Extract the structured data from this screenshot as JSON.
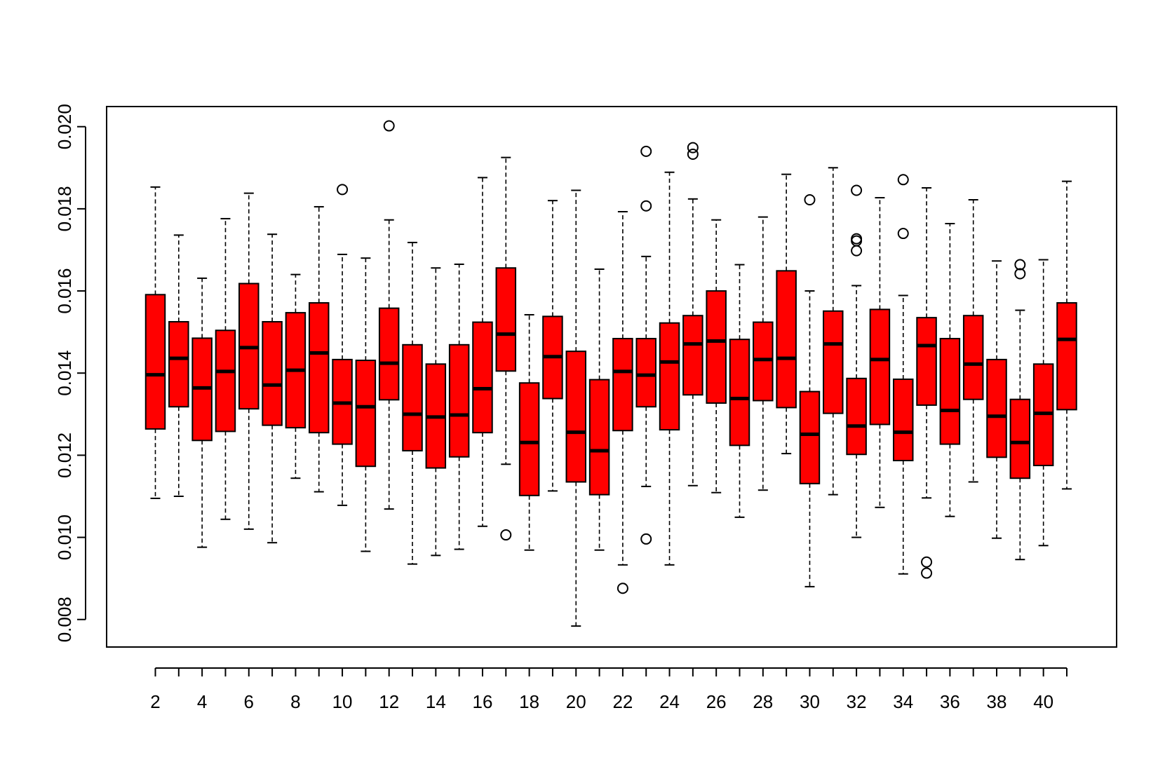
{
  "chart_data": {
    "type": "boxplot",
    "color": "#ff0000",
    "categories": [
      "2",
      null,
      "4",
      null,
      "6",
      null,
      "8",
      null,
      "10",
      null,
      "12",
      null,
      "14",
      null,
      "16",
      null,
      "18",
      null,
      "20",
      null,
      "22",
      null,
      "24",
      null,
      "26",
      null,
      "28",
      null,
      "30",
      null,
      "32",
      null,
      "34",
      null,
      "36",
      null,
      "38",
      null,
      "40",
      null
    ],
    "ylim": [
      0.00733,
      0.02049
    ],
    "yticks": [
      0.008,
      {
        "value": 0.01,
        "label": "0.010"
      },
      0.012,
      0.014,
      0.016,
      0.018,
      {
        "value": 0.02,
        "label": "0.020"
      }
    ],
    "boxes": [
      {
        "whislo": 0.01095,
        "q1": 0.01264,
        "med": 0.01396,
        "q3": 0.01591,
        "whishi": 0.01853,
        "fliers": []
      },
      {
        "whislo": 0.011,
        "q1": 0.01318,
        "med": 0.01436,
        "q3": 0.01525,
        "whishi": 0.01736,
        "fliers": []
      },
      {
        "whislo": 0.00976,
        "q1": 0.01236,
        "med": 0.01364,
        "q3": 0.01485,
        "whishi": 0.01631,
        "fliers": []
      },
      {
        "whislo": 0.01044,
        "q1": 0.01258,
        "med": 0.01404,
        "q3": 0.01504,
        "whishi": 0.01776,
        "fliers": []
      },
      {
        "whislo": 0.0102,
        "q1": 0.01313,
        "med": 0.01462,
        "q3": 0.01618,
        "whishi": 0.01838,
        "fliers": []
      },
      {
        "whislo": 0.00987,
        "q1": 0.01273,
        "med": 0.01371,
        "q3": 0.01525,
        "whishi": 0.01738,
        "fliers": []
      },
      {
        "whislo": 0.01144,
        "q1": 0.01267,
        "med": 0.01407,
        "q3": 0.01547,
        "whishi": 0.0164,
        "fliers": []
      },
      {
        "whislo": 0.01111,
        "q1": 0.01255,
        "med": 0.01449,
        "q3": 0.01571,
        "whishi": 0.01805,
        "fliers": []
      },
      {
        "whislo": 0.01078,
        "q1": 0.01227,
        "med": 0.01327,
        "q3": 0.01433,
        "whishi": 0.01689,
        "fliers": [
          0.01847
        ]
      },
      {
        "whislo": 0.00966,
        "q1": 0.01173,
        "med": 0.01318,
        "q3": 0.01431,
        "whishi": 0.0168,
        "fliers": []
      },
      {
        "whislo": 0.01069,
        "q1": 0.01335,
        "med": 0.01424,
        "q3": 0.01558,
        "whishi": 0.01773,
        "fliers": [
          0.02002
        ]
      },
      {
        "whislo": 0.00935,
        "q1": 0.01211,
        "med": 0.013,
        "q3": 0.01469,
        "whishi": 0.01718,
        "fliers": []
      },
      {
        "whislo": 0.00956,
        "q1": 0.01169,
        "med": 0.01293,
        "q3": 0.01422,
        "whishi": 0.01656,
        "fliers": []
      },
      {
        "whislo": 0.00971,
        "q1": 0.01196,
        "med": 0.01298,
        "q3": 0.01469,
        "whishi": 0.01665,
        "fliers": []
      },
      {
        "whislo": 0.01027,
        "q1": 0.01255,
        "med": 0.01362,
        "q3": 0.01524,
        "whishi": 0.01876,
        "fliers": []
      },
      {
        "whislo": 0.01178,
        "q1": 0.01405,
        "med": 0.01495,
        "q3": 0.01656,
        "whishi": 0.01925,
        "fliers": [
          0.01006
        ]
      },
      {
        "whislo": 0.00969,
        "q1": 0.01102,
        "med": 0.01231,
        "q3": 0.01376,
        "whishi": 0.01542,
        "fliers": []
      },
      {
        "whislo": 0.01113,
        "q1": 0.01338,
        "med": 0.0144,
        "q3": 0.01538,
        "whishi": 0.0182,
        "fliers": []
      },
      {
        "whislo": 0.00784,
        "q1": 0.01135,
        "med": 0.01256,
        "q3": 0.01453,
        "whishi": 0.01845,
        "fliers": []
      },
      {
        "whislo": 0.00969,
        "q1": 0.01104,
        "med": 0.01211,
        "q3": 0.01384,
        "whishi": 0.01653,
        "fliers": []
      },
      {
        "whislo": 0.00933,
        "q1": 0.0126,
        "med": 0.01404,
        "q3": 0.01484,
        "whishi": 0.01793,
        "fliers": [
          0.00876
        ]
      },
      {
        "whislo": 0.01124,
        "q1": 0.01318,
        "med": 0.01395,
        "q3": 0.01484,
        "whishi": 0.01684,
        "fliers": [
          0.0194,
          0.01807,
          0.00996
        ]
      },
      {
        "whislo": 0.00933,
        "q1": 0.01262,
        "med": 0.01427,
        "q3": 0.01522,
        "whishi": 0.01889,
        "fliers": []
      },
      {
        "whislo": 0.01126,
        "q1": 0.01347,
        "med": 0.01471,
        "q3": 0.0154,
        "whishi": 0.01824,
        "fliers": [
          0.01949,
          0.01933
        ]
      },
      {
        "whislo": 0.01109,
        "q1": 0.01327,
        "med": 0.01478,
        "q3": 0.016,
        "whishi": 0.01773,
        "fliers": []
      },
      {
        "whislo": 0.01049,
        "q1": 0.01224,
        "med": 0.01338,
        "q3": 0.01482,
        "whishi": 0.01664,
        "fliers": []
      },
      {
        "whislo": 0.01115,
        "q1": 0.01333,
        "med": 0.01433,
        "q3": 0.01524,
        "whishi": 0.0178,
        "fliers": []
      },
      {
        "whislo": 0.01204,
        "q1": 0.01316,
        "med": 0.01436,
        "q3": 0.01649,
        "whishi": 0.01884,
        "fliers": []
      },
      {
        "whislo": 0.0088,
        "q1": 0.01131,
        "med": 0.01251,
        "q3": 0.01355,
        "whishi": 0.016,
        "fliers": [
          0.01822
        ]
      },
      {
        "whislo": 0.01104,
        "q1": 0.01302,
        "med": 0.01471,
        "q3": 0.01551,
        "whishi": 0.019,
        "fliers": []
      },
      {
        "whislo": 0.01,
        "q1": 0.01202,
        "med": 0.01271,
        "q3": 0.01387,
        "whishi": 0.01613,
        "fliers": [
          0.01845,
          0.01727,
          0.01722,
          0.01698
        ]
      },
      {
        "whislo": 0.01073,
        "q1": 0.01275,
        "med": 0.01433,
        "q3": 0.01555,
        "whishi": 0.01827,
        "fliers": []
      },
      {
        "whislo": 0.00911,
        "q1": 0.01187,
        "med": 0.01256,
        "q3": 0.01385,
        "whishi": 0.01589,
        "fliers": [
          0.01871,
          0.0174
        ]
      },
      {
        "whislo": 0.01096,
        "q1": 0.01322,
        "med": 0.01467,
        "q3": 0.01535,
        "whishi": 0.01851,
        "fliers": [
          0.0094,
          0.00913
        ]
      },
      {
        "whislo": 0.01051,
        "q1": 0.01227,
        "med": 0.01309,
        "q3": 0.01484,
        "whishi": 0.01764,
        "fliers": []
      },
      {
        "whislo": 0.01135,
        "q1": 0.01336,
        "med": 0.01422,
        "q3": 0.0154,
        "whishi": 0.01822,
        "fliers": []
      },
      {
        "whislo": 0.00998,
        "q1": 0.01195,
        "med": 0.01295,
        "q3": 0.01433,
        "whishi": 0.01673,
        "fliers": []
      },
      {
        "whislo": 0.00946,
        "q1": 0.01144,
        "med": 0.01231,
        "q3": 0.01336,
        "whishi": 0.01553,
        "fliers": [
          0.01664,
          0.01642
        ]
      },
      {
        "whislo": 0.0098,
        "q1": 0.01175,
        "med": 0.01302,
        "q3": 0.01422,
        "whishi": 0.01676,
        "fliers": []
      },
      {
        "whislo": 0.01118,
        "q1": 0.01311,
        "med": 0.01482,
        "q3": 0.01571,
        "whishi": 0.01867,
        "fliers": []
      }
    ]
  }
}
